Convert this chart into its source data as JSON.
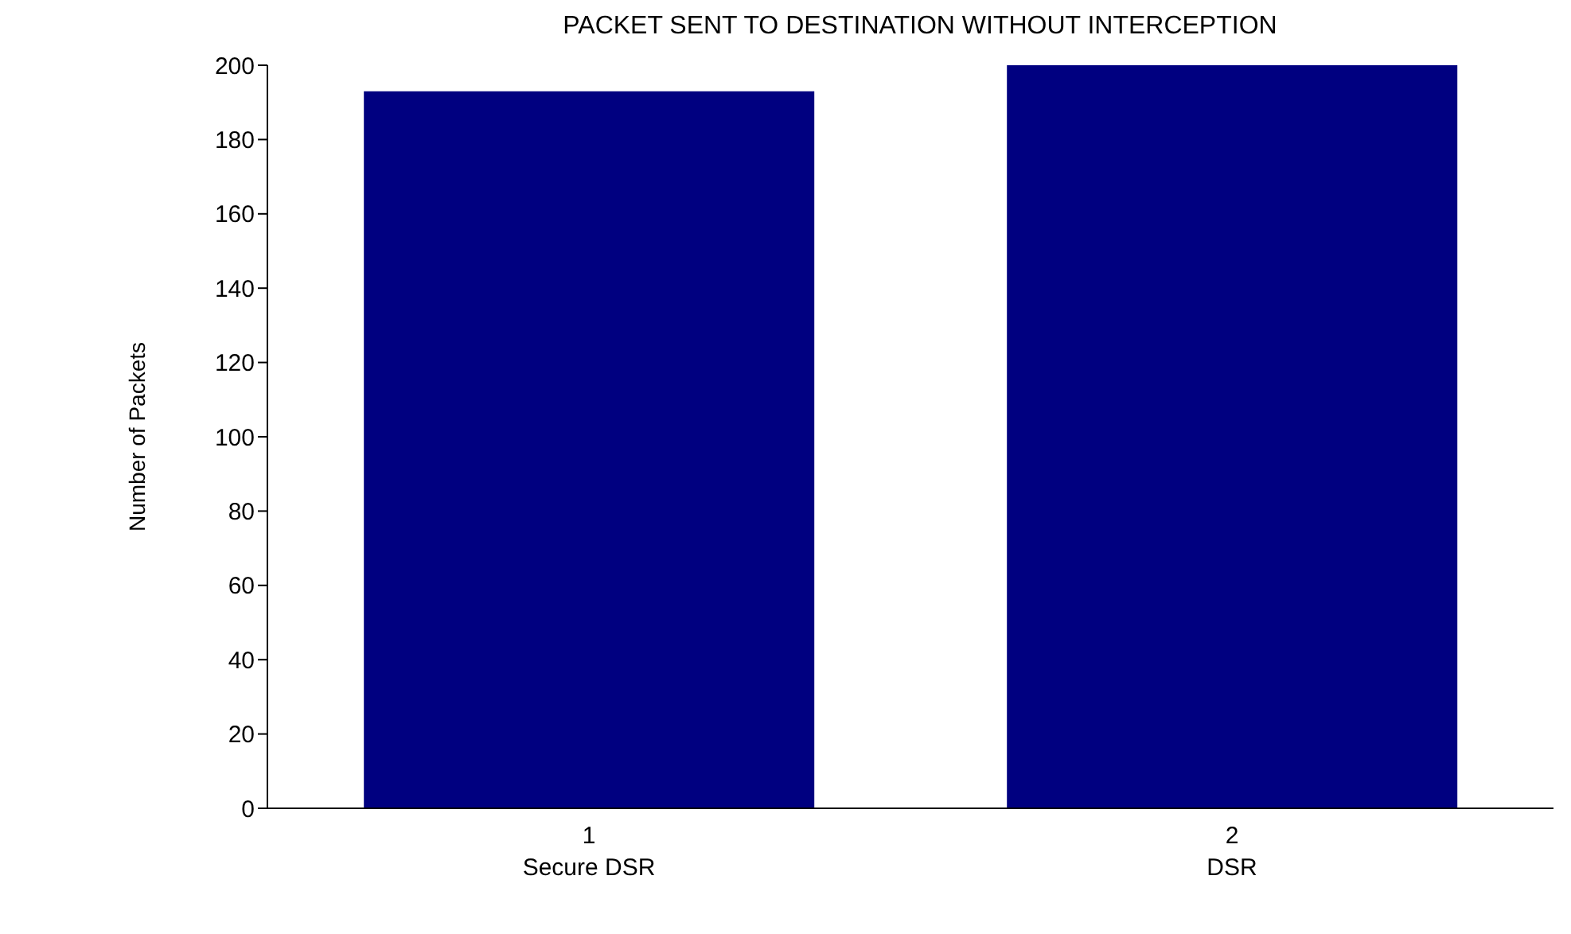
{
  "chart_data": {
    "type": "bar",
    "title": "PACKET SENT TO DESTINATION WITHOUT INTERCEPTION",
    "ylabel": "Number of Packets",
    "categories": [
      "1",
      "2"
    ],
    "values": [
      193,
      200
    ],
    "color": "#000080",
    "ylim": [
      0,
      200
    ],
    "yticks": [
      0,
      20,
      40,
      60,
      80,
      100,
      120,
      140,
      160,
      180,
      200
    ],
    "annotations": [
      "Secure DSR",
      "DSR"
    ],
    "grid": false,
    "legend": false
  }
}
